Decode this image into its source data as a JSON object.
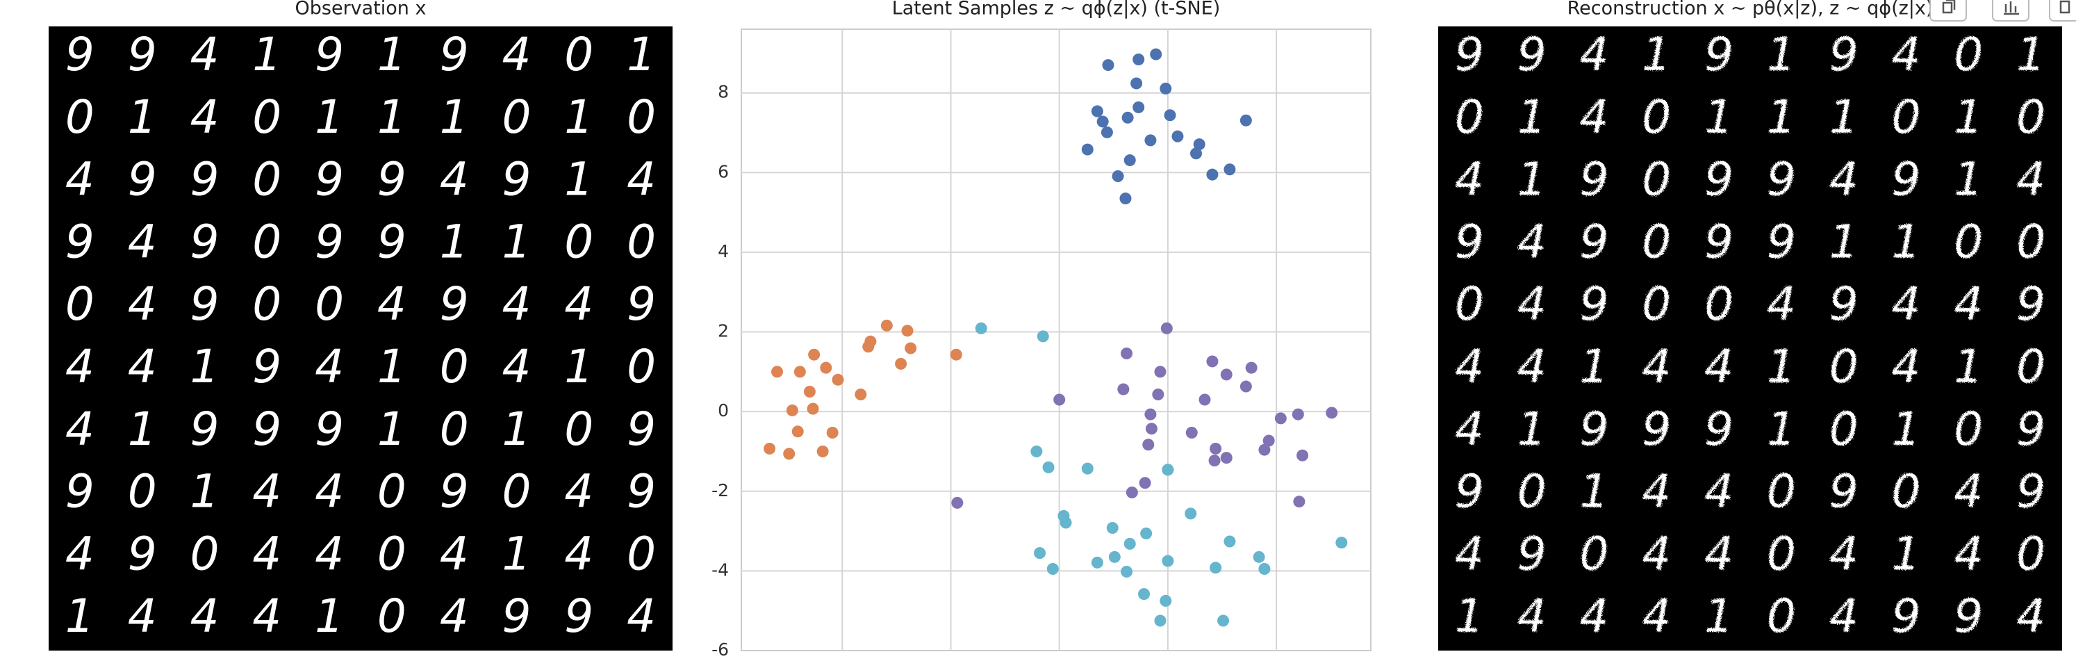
{
  "observation": {
    "title": "Observation x",
    "digits": [
      [
        "9",
        "9",
        "4",
        "1",
        "9",
        "1",
        "9",
        "4",
        "0",
        "1"
      ],
      [
        "0",
        "1",
        "4",
        "0",
        "1",
        "1",
        "1",
        "0",
        "1",
        "0"
      ],
      [
        "4",
        "9",
        "9",
        "0",
        "9",
        "9",
        "4",
        "9",
        "1",
        "4"
      ],
      [
        "9",
        "4",
        "9",
        "0",
        "9",
        "9",
        "1",
        "1",
        "0",
        "0"
      ],
      [
        "0",
        "4",
        "9",
        "0",
        "0",
        "4",
        "9",
        "4",
        "4",
        "9"
      ],
      [
        "4",
        "4",
        "1",
        "9",
        "4",
        "1",
        "0",
        "4",
        "1",
        "0"
      ],
      [
        "4",
        "1",
        "9",
        "9",
        "9",
        "1",
        "0",
        "1",
        "0",
        "9"
      ],
      [
        "9",
        "0",
        "1",
        "4",
        "4",
        "0",
        "9",
        "0",
        "4",
        "9"
      ],
      [
        "4",
        "9",
        "0",
        "4",
        "4",
        "0",
        "4",
        "1",
        "4",
        "0"
      ],
      [
        "1",
        "4",
        "4",
        "4",
        "1",
        "0",
        "4",
        "9",
        "9",
        "4"
      ]
    ]
  },
  "chart_data": {
    "type": "scatter",
    "title": "Latent Samples z ~ qϕ(z|x) (t-SNE)",
    "xlim": [
      -2.93,
      2.87
    ],
    "xticks": [
      -2,
      -1,
      0,
      1,
      2
    ],
    "ylim": [
      -6,
      9.6
    ],
    "yticks": [
      -6,
      -4,
      -2,
      0,
      2,
      4,
      6,
      8
    ],
    "grid": true,
    "series": [
      {
        "color": "#4c72b0",
        "x": [
          0.45,
          0.73,
          0.89,
          0.71,
          0.98,
          0.35,
          0.73,
          0.4,
          0.63,
          1.02,
          0.44,
          0.84,
          1.09,
          1.29,
          0.26,
          0.65,
          1.26,
          1.72,
          1.57,
          1.41,
          0.54,
          0.61
        ],
        "values": [
          8.7,
          8.84,
          8.97,
          8.24,
          8.11,
          7.54,
          7.64,
          7.28,
          7.38,
          7.44,
          7.01,
          6.81,
          6.91,
          6.71,
          6.58,
          6.31,
          6.48,
          7.31,
          6.08,
          5.95,
          5.91,
          5.35
        ]
      },
      {
        "color": "#dd8452",
        "x": [
          -2.6,
          -2.39,
          -2.26,
          -2.15,
          -2.04,
          -2.3,
          -2.46,
          -2.27,
          -1.83,
          -1.59,
          -1.74,
          -1.4,
          -1.37,
          -1.76,
          -1.46,
          -0.95,
          -2.41,
          -2.09,
          -2.67,
          -2.49,
          -2.18
        ],
        "values": [
          1.0,
          1.0,
          1.43,
          1.1,
          0.8,
          0.5,
          0.03,
          0.07,
          0.43,
          2.16,
          1.76,
          2.03,
          1.59,
          1.63,
          1.2,
          1.43,
          -0.5,
          -0.53,
          -0.93,
          -1.06,
          -1.0
        ]
      },
      {
        "color": "#8172b3",
        "x": [
          0.99,
          0.62,
          1.41,
          0.93,
          1.77,
          1.54,
          0.59,
          0.91,
          1.72,
          0.0,
          1.34,
          0.84,
          2.51,
          2.2,
          2.04,
          0.85,
          1.22,
          1.93,
          1.44,
          1.89,
          1.54,
          1.43,
          2.24,
          0.82,
          1.0,
          0.79,
          0.67,
          -0.94,
          2.21
        ],
        "values": [
          2.09,
          1.46,
          1.26,
          1.0,
          1.1,
          0.93,
          0.56,
          0.43,
          0.63,
          0.3,
          0.3,
          -0.07,
          -0.03,
          -0.07,
          -0.17,
          -0.43,
          -0.53,
          -0.73,
          -0.93,
          -0.96,
          -1.16,
          -1.23,
          -1.1,
          -0.83,
          -1.46,
          -1.79,
          -2.03,
          -2.29,
          -2.26
        ]
      },
      {
        "color": "#64b5cd",
        "x": [
          -0.72,
          -0.15,
          -0.21,
          -0.1,
          0.26,
          1.0,
          0.04,
          0.06,
          1.21,
          0.49,
          0.8,
          0.65,
          1.57,
          -0.18,
          0.51,
          0.35,
          0.62,
          -0.06,
          1.0,
          1.44,
          1.84,
          1.89,
          2.6,
          0.78,
          0.98,
          0.93,
          1.51
        ],
        "values": [
          2.09,
          1.89,
          -1.0,
          -1.4,
          -1.43,
          -1.46,
          -2.62,
          -2.79,
          -2.56,
          -2.92,
          -3.06,
          -3.32,
          -3.26,
          -3.55,
          -3.65,
          -3.79,
          -4.02,
          -3.95,
          -3.75,
          -3.92,
          -3.65,
          -3.95,
          -3.29,
          -4.58,
          -4.75,
          -5.25,
          -5.25
        ]
      }
    ]
  },
  "reconstruction": {
    "title": "Reconstruction x ~ pθ(x|z), z ~ qϕ(z|x)",
    "digits": [
      [
        "9",
        "9",
        "4",
        "1",
        "9",
        "1",
        "9",
        "4",
        "0",
        "1"
      ],
      [
        "0",
        "1",
        "4",
        "0",
        "1",
        "1",
        "1",
        "0",
        "1",
        "0"
      ],
      [
        "4",
        "1",
        "9",
        "0",
        "9",
        "9",
        "4",
        "9",
        "1",
        "4"
      ],
      [
        "9",
        "4",
        "9",
        "0",
        "9",
        "9",
        "1",
        "1",
        "0",
        "0"
      ],
      [
        "0",
        "4",
        "9",
        "0",
        "0",
        "4",
        "9",
        "4",
        "4",
        "9"
      ],
      [
        "4",
        "4",
        "1",
        "4",
        "4",
        "1",
        "0",
        "4",
        "1",
        "0"
      ],
      [
        "4",
        "1",
        "9",
        "9",
        "9",
        "1",
        "0",
        "1",
        "0",
        "9"
      ],
      [
        "9",
        "0",
        "1",
        "4",
        "4",
        "0",
        "9",
        "0",
        "4",
        "9"
      ],
      [
        "4",
        "9",
        "0",
        "4",
        "4",
        "0",
        "4",
        "1",
        "4",
        "0"
      ],
      [
        "1",
        "4",
        "4",
        "4",
        "1",
        "0",
        "4",
        "9",
        "9",
        "4"
      ]
    ]
  }
}
